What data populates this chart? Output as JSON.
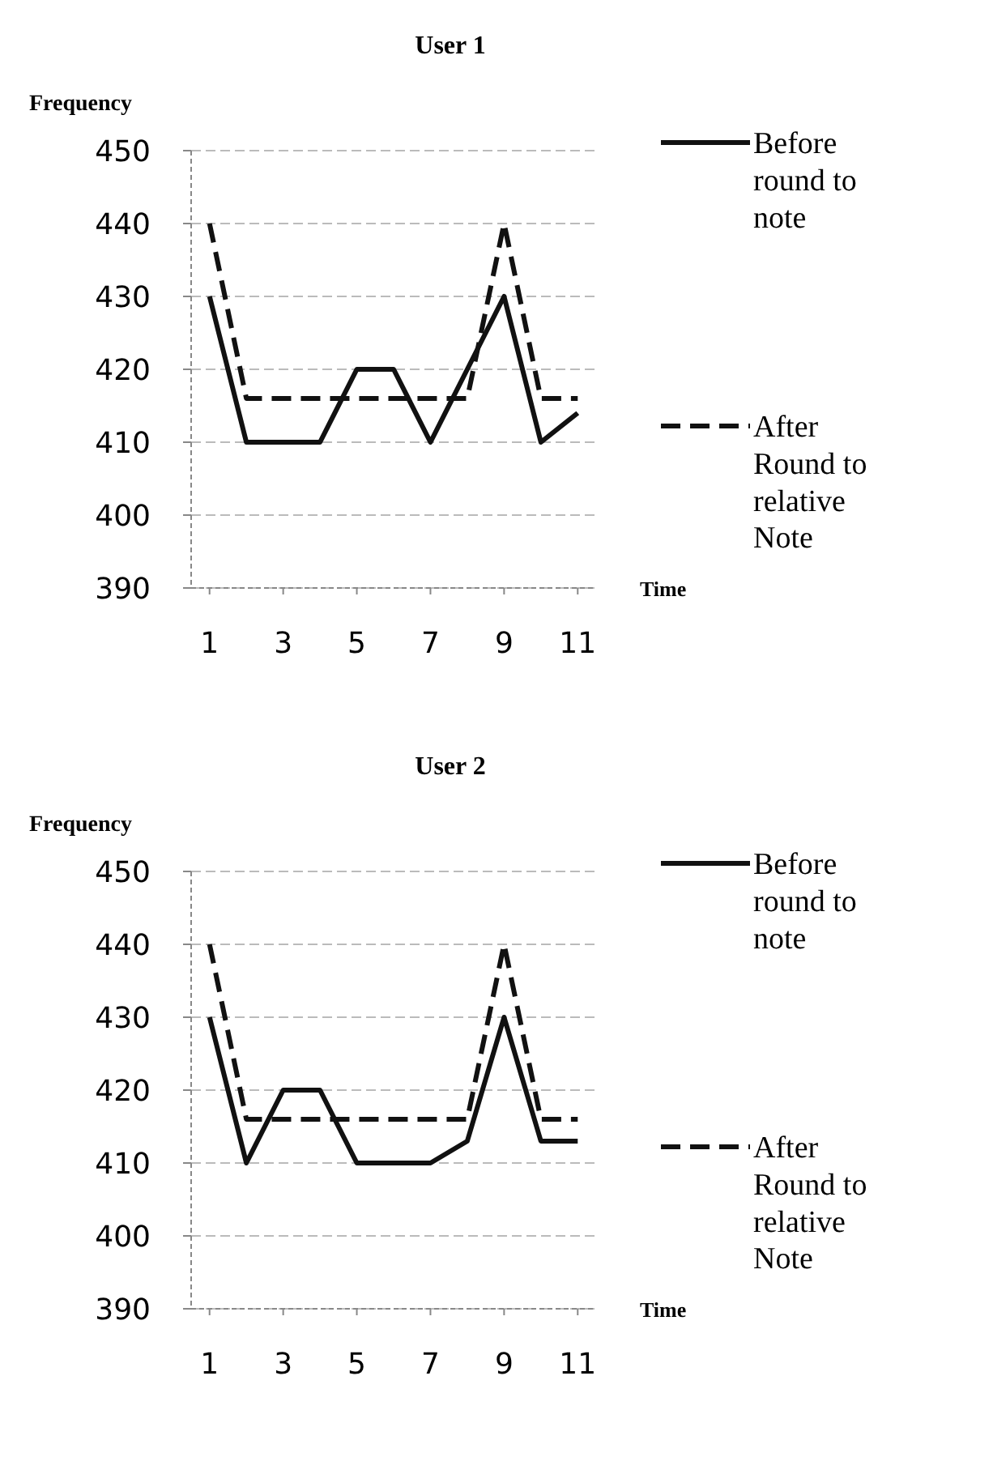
{
  "chart_data": [
    {
      "type": "line",
      "title": "User 1",
      "ylabel": "Frequency",
      "xlabel": "Time",
      "x": [
        1,
        2,
        3,
        4,
        5,
        6,
        7,
        8,
        9,
        10,
        11
      ],
      "xlim": [
        0.5,
        11.5
      ],
      "xticks": [
        1,
        3,
        5,
        7,
        9,
        11
      ],
      "ylim": [
        390,
        450
      ],
      "yticks": [
        390,
        400,
        410,
        420,
        430,
        440,
        450
      ],
      "grid": "y",
      "legend": "right",
      "series": [
        {
          "name": "Before round to note",
          "color": "#111111",
          "line_style": "solid",
          "values": [
            430,
            410,
            410,
            410,
            420,
            420,
            410,
            420,
            430,
            410,
            414
          ]
        },
        {
          "name": "After Round to relative Note",
          "color": "#111111",
          "line_style": "dashed",
          "values": [
            440,
            416,
            416,
            416,
            416,
            416,
            416,
            416,
            440,
            416,
            416
          ]
        }
      ]
    },
    {
      "type": "line",
      "title": "User 2",
      "ylabel": "Frequency",
      "xlabel": "Time",
      "x": [
        1,
        2,
        3,
        4,
        5,
        6,
        7,
        8,
        9,
        10,
        11
      ],
      "xlim": [
        0.5,
        11.5
      ],
      "xticks": [
        1,
        3,
        5,
        7,
        9,
        11
      ],
      "ylim": [
        390,
        450
      ],
      "yticks": [
        390,
        400,
        410,
        420,
        430,
        440,
        450
      ],
      "grid": "y",
      "legend": "right",
      "series": [
        {
          "name": "Before round to note",
          "color": "#111111",
          "line_style": "solid",
          "values": [
            430,
            410,
            420,
            420,
            410,
            410,
            410,
            413,
            430,
            413,
            413
          ]
        },
        {
          "name": "After Round to relative Note",
          "color": "#111111",
          "line_style": "dashed",
          "values": [
            440,
            416,
            416,
            416,
            416,
            416,
            416,
            416,
            440,
            416,
            416
          ]
        }
      ]
    }
  ]
}
